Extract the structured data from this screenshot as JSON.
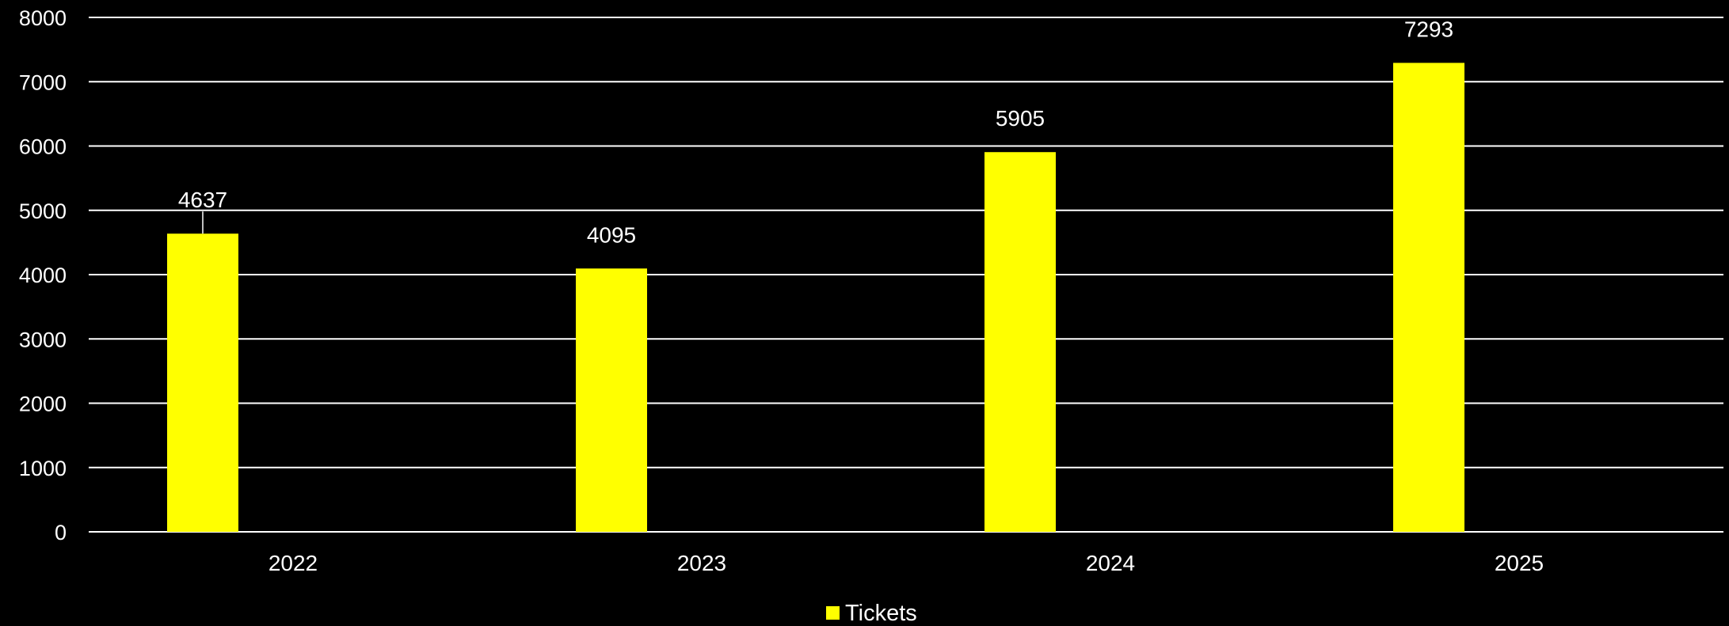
{
  "chart_data": {
    "type": "bar",
    "categories": [
      "2022",
      "2023",
      "2024",
      "2025"
    ],
    "series": [
      {
        "name": "Tickets",
        "values": [
          4637,
          4095,
          5905,
          7293
        ],
        "color": "#ffff00"
      }
    ],
    "data_labels": [
      "4637",
      "4095",
      "5905",
      "7293"
    ],
    "ylim": [
      0,
      8000
    ],
    "y_ticks": [
      0,
      1000,
      2000,
      3000,
      4000,
      5000,
      6000,
      7000,
      8000
    ],
    "y_tick_labels": [
      "0",
      "1000",
      "2000",
      "3000",
      "4000",
      "5000",
      "6000",
      "7000",
      "8000"
    ],
    "grid": true,
    "legend_position": "bottom",
    "title": "",
    "xlabel": "",
    "ylabel": "",
    "colors": {
      "background": "#000000",
      "grid": "#ffffff",
      "text": "#ffffff",
      "bar": "#ffff00"
    }
  }
}
